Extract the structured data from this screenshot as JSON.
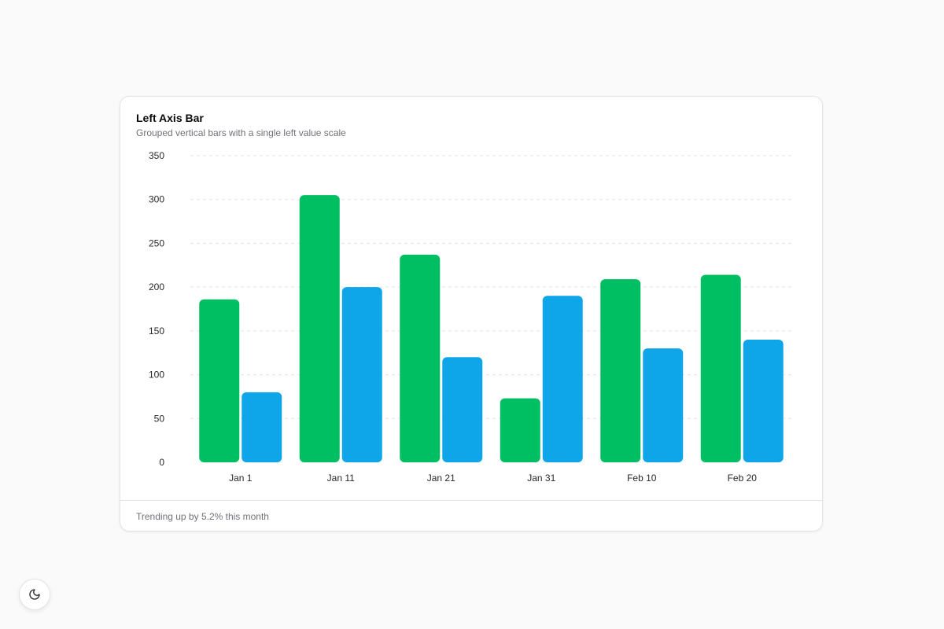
{
  "card": {
    "title": "Left Axis Bar",
    "subtitle": "Grouped vertical bars with a single left value scale",
    "footer": "Trending up by 5.2% this month"
  },
  "theme_toggle": {
    "icon": "moon-icon"
  },
  "colors": {
    "series_green": "#00bf63",
    "series_blue": "#0ea5e9",
    "grid": "#e4e4e7",
    "tick_text": "#27272a"
  },
  "chart_data": {
    "type": "bar",
    "categories": [
      "Jan 1",
      "Jan 11",
      "Jan 21",
      "Jan 31",
      "Feb 10",
      "Feb 20"
    ],
    "series": [
      {
        "values": [
          186,
          305,
          237,
          73,
          209,
          214
        ],
        "color": "#00bf63"
      },
      {
        "values": [
          80,
          200,
          120,
          190,
          130,
          140
        ],
        "color": "#0ea5e9"
      }
    ],
    "ylim": [
      0,
      350
    ],
    "yticks": [
      0,
      50,
      100,
      150,
      200,
      250,
      300,
      350
    ],
    "grid": true,
    "legend": "none"
  }
}
